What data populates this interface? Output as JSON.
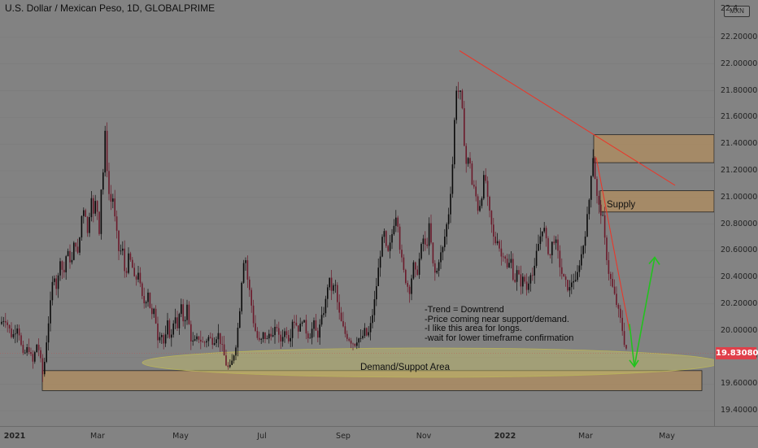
{
  "header": {
    "title": "U.S. Dollar / Mexican Peso, 1D, GLOBALPRIME",
    "currency": "MXN"
  },
  "price_tag": "19.83080",
  "annotations": {
    "supply": "Supply",
    "demand": "Demand/Suppot Area",
    "notes": [
      "-Trend = Downtrend",
      "-Price coming near support/demand.",
      "-I like this area for longs.",
      "-wait for lower timeframe confirmation"
    ]
  },
  "colors": {
    "background": "#828282",
    "bull": "#0a0a0a",
    "bear": "#6b1a2b",
    "trendline": "#e8382b",
    "arrow": "#22c21e",
    "zone": "#b38e5d",
    "ellipse": "#c9c46a",
    "price_tag": "#e0404a"
  },
  "chart_data": {
    "type": "candlestick",
    "title": "U.S. Dollar / Mexican Peso, 1D, GLOBALPRIME",
    "y_ticks": [
      "22.20000",
      "22.00000",
      "21.80000",
      "21.60000",
      "21.40000",
      "21.20000",
      "21.00000",
      "20.80000",
      "20.60000",
      "20.40000",
      "20.20000",
      "20.00000",
      "19.80000",
      "19.60000",
      "19.40000"
    ],
    "top_tick_partial": "22.4",
    "x_ticks": [
      {
        "label": "2021",
        "bold": true
      },
      {
        "label": "Mar",
        "bold": false
      },
      {
        "label": "May",
        "bold": false
      },
      {
        "label": "Jul",
        "bold": false
      },
      {
        "label": "Sep",
        "bold": false
      },
      {
        "label": "Nov",
        "bold": false
      },
      {
        "label": "2022",
        "bold": true
      },
      {
        "label": "Mar",
        "bold": false
      },
      {
        "label": "May",
        "bold": false
      }
    ],
    "ylim": [
      19.33,
      22.48
    ],
    "last_price": 19.8308,
    "series": [
      {
        "name": "USDMXN",
        "points": [
          [
            0,
            20.05
          ],
          [
            6,
            20.1
          ],
          [
            15,
            19.95
          ],
          [
            22,
            20.05
          ],
          [
            28,
            19.8
          ],
          [
            35,
            19.88
          ],
          [
            40,
            19.75
          ],
          [
            46,
            19.92
          ],
          [
            53,
            19.65
          ],
          [
            58,
            19.98
          ],
          [
            62,
            20.2
          ],
          [
            66,
            20.45
          ],
          [
            70,
            20.3
          ],
          [
            74,
            20.55
          ],
          [
            78,
            20.4
          ],
          [
            82,
            20.6
          ],
          [
            88,
            20.5
          ],
          [
            92,
            20.7
          ],
          [
            96,
            20.55
          ],
          [
            100,
            20.85
          ],
          [
            104,
            20.95
          ],
          [
            108,
            20.7
          ],
          [
            112,
            21.05
          ],
          [
            115,
            20.85
          ],
          [
            118,
            21.0
          ],
          [
            122,
            20.75
          ],
          [
            124,
            21.05
          ],
          [
            127,
            21.2
          ],
          [
            129,
            21.5
          ],
          [
            131,
            21.25
          ],
          [
            133,
            21.15
          ],
          [
            135,
            20.9
          ],
          [
            138,
            21.05
          ],
          [
            141,
            20.85
          ],
          [
            144,
            20.7
          ],
          [
            147,
            20.55
          ],
          [
            150,
            20.65
          ],
          [
            154,
            20.4
          ],
          [
            158,
            20.55
          ],
          [
            162,
            20.5
          ],
          [
            166,
            20.35
          ],
          [
            170,
            20.45
          ],
          [
            174,
            20.25
          ],
          [
            178,
            20.2
          ],
          [
            182,
            20.3
          ],
          [
            186,
            20.1
          ],
          [
            190,
            20.15
          ],
          [
            194,
            19.95
          ],
          [
            198,
            20.0
          ],
          [
            202,
            19.88
          ],
          [
            206,
            20.05
          ],
          [
            210,
            19.92
          ],
          [
            215,
            20.15
          ],
          [
            218,
            20.0
          ],
          [
            222,
            20.2
          ],
          [
            226,
            20.05
          ],
          [
            230,
            20.18
          ],
          [
            234,
            19.95
          ],
          [
            238,
            19.9
          ],
          [
            244,
            19.95
          ],
          [
            250,
            19.9
          ],
          [
            256,
            19.95
          ],
          [
            262,
            19.92
          ],
          [
            268,
            19.98
          ],
          [
            274,
            19.85
          ],
          [
            278,
            19.75
          ],
          [
            282,
            19.7
          ],
          [
            286,
            19.78
          ],
          [
            290,
            19.9
          ],
          [
            294,
            20.1
          ],
          [
            298,
            20.45
          ],
          [
            301,
            20.6
          ],
          [
            304,
            20.4
          ],
          [
            308,
            20.25
          ],
          [
            312,
            20.05
          ],
          [
            316,
            19.95
          ],
          [
            320,
            19.9
          ],
          [
            324,
            19.98
          ],
          [
            328,
            19.92
          ],
          [
            332,
            20.0
          ],
          [
            336,
            19.95
          ],
          [
            340,
            20.05
          ],
          [
            344,
            19.9
          ],
          [
            348,
            19.98
          ],
          [
            352,
            20.0
          ],
          [
            356,
            19.92
          ],
          [
            360,
            20.1
          ],
          [
            364,
            20.05
          ],
          [
            368,
            20.0
          ],
          [
            372,
            20.1
          ],
          [
            376,
            20.0
          ],
          [
            380,
            19.95
          ],
          [
            386,
            20.05
          ],
          [
            390,
            19.95
          ],
          [
            396,
            20.1
          ],
          [
            400,
            20.2
          ],
          [
            404,
            20.4
          ],
          [
            408,
            20.3
          ],
          [
            412,
            20.35
          ],
          [
            416,
            20.15
          ],
          [
            420,
            20.05
          ],
          [
            424,
            19.98
          ],
          [
            428,
            19.95
          ],
          [
            432,
            19.92
          ],
          [
            436,
            19.9
          ],
          [
            440,
            19.95
          ],
          [
            444,
            19.92
          ],
          [
            448,
            20.0
          ],
          [
            452,
            19.95
          ],
          [
            456,
            20.05
          ],
          [
            460,
            20.2
          ],
          [
            464,
            20.4
          ],
          [
            468,
            20.6
          ],
          [
            472,
            20.75
          ],
          [
            476,
            20.55
          ],
          [
            480,
            20.65
          ],
          [
            484,
            20.8
          ],
          [
            488,
            20.9
          ],
          [
            492,
            20.6
          ],
          [
            496,
            20.45
          ],
          [
            500,
            20.35
          ],
          [
            504,
            20.3
          ],
          [
            508,
            20.5
          ],
          [
            512,
            20.4
          ],
          [
            516,
            20.55
          ],
          [
            520,
            20.7
          ],
          [
            524,
            20.6
          ],
          [
            528,
            20.8
          ],
          [
            532,
            20.5
          ],
          [
            536,
            20.4
          ],
          [
            540,
            20.55
          ],
          [
            544,
            20.6
          ],
          [
            548,
            20.75
          ],
          [
            552,
            20.9
          ],
          [
            556,
            21.2
          ],
          [
            559,
            21.6
          ],
          [
            562,
            21.9
          ],
          [
            565,
            21.7
          ],
          [
            567,
            21.85
          ],
          [
            569,
            21.55
          ],
          [
            571,
            21.4
          ],
          [
            574,
            21.2
          ],
          [
            577,
            21.35
          ],
          [
            580,
            21.1
          ],
          [
            584,
            21.05
          ],
          [
            588,
            20.9
          ],
          [
            592,
            21.0
          ],
          [
            596,
            21.2
          ],
          [
            600,
            20.95
          ],
          [
            604,
            20.8
          ],
          [
            608,
            20.65
          ],
          [
            612,
            20.7
          ],
          [
            616,
            20.55
          ],
          [
            620,
            20.6
          ],
          [
            624,
            20.45
          ],
          [
            628,
            20.55
          ],
          [
            632,
            20.35
          ],
          [
            636,
            20.45
          ],
          [
            640,
            20.35
          ],
          [
            644,
            20.4
          ],
          [
            648,
            20.3
          ],
          [
            652,
            20.45
          ],
          [
            656,
            20.4
          ],
          [
            660,
            20.6
          ],
          [
            664,
            20.7
          ],
          [
            668,
            20.8
          ],
          [
            672,
            20.65
          ],
          [
            676,
            20.55
          ],
          [
            680,
            20.7
          ],
          [
            684,
            20.65
          ],
          [
            688,
            20.5
          ],
          [
            692,
            20.4
          ],
          [
            696,
            20.35
          ],
          [
            700,
            20.3
          ],
          [
            704,
            20.4
          ],
          [
            708,
            20.35
          ],
          [
            712,
            20.5
          ],
          [
            716,
            20.6
          ],
          [
            720,
            20.75
          ],
          [
            724,
            20.95
          ],
          [
            727,
            21.2
          ],
          [
            730,
            21.35
          ],
          [
            732,
            21.1
          ],
          [
            735,
            20.95
          ],
          [
            738,
            20.9
          ],
          [
            741,
            20.85
          ],
          [
            744,
            20.65
          ],
          [
            748,
            20.45
          ],
          [
            752,
            20.35
          ],
          [
            756,
            20.25
          ],
          [
            760,
            20.15
          ],
          [
            764,
            20.05
          ],
          [
            768,
            19.9
          ],
          [
            771,
            19.85
          ]
        ]
      }
    ],
    "zones": [
      {
        "name": "supply_upper",
        "y0": 21.26,
        "y1": 21.47,
        "x0": 730
      },
      {
        "name": "supply_lower",
        "y0": 20.89,
        "y1": 21.05,
        "x0": 738
      },
      {
        "name": "demand",
        "y0": 19.55,
        "y1": 19.7,
        "x0": 52
      }
    ],
    "trendlines": [
      {
        "x0": 565,
        "y0": 22.1,
        "x1": 830,
        "y1": 21.09
      },
      {
        "x0": 733,
        "y0": 21.3,
        "x1": 774,
        "y1": 20.0
      }
    ],
    "projection_arrow": {
      "x0": 780,
      "y0": 19.73,
      "x1": 805,
      "y1": 20.55
    }
  }
}
